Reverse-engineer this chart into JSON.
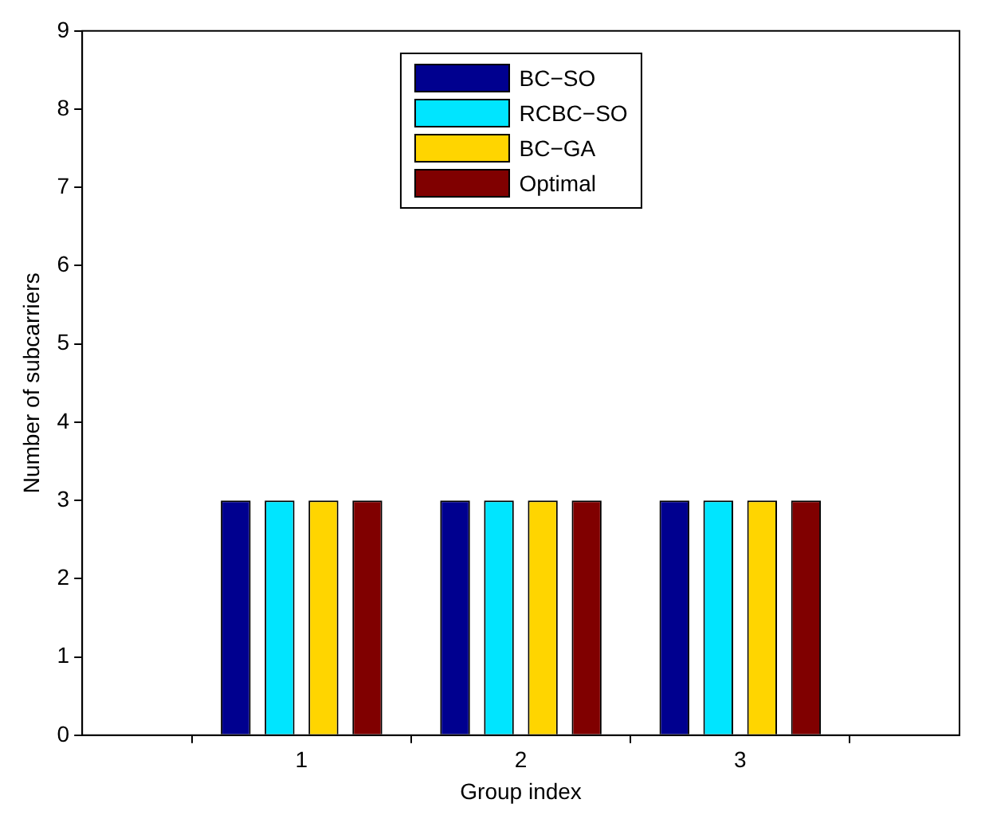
{
  "chart_data": {
    "type": "bar",
    "xlabel": "Group index",
    "ylabel": "Number of subcarriers",
    "x": [
      1,
      2,
      3
    ],
    "xlim": [
      0,
      4
    ],
    "xticks": [
      1,
      2,
      3
    ],
    "ylim": [
      0,
      9
    ],
    "yticks": [
      0,
      1,
      2,
      3,
      4,
      5,
      6,
      7,
      8,
      9
    ],
    "series": [
      {
        "name": "BC−SO",
        "color": "#00008f",
        "values": [
          3,
          3,
          3
        ]
      },
      {
        "name": "RCBC−SO",
        "color": "#00e5ff",
        "values": [
          3,
          3,
          3
        ]
      },
      {
        "name": "BC−GA",
        "color": "#ffd500",
        "values": [
          3,
          3,
          3
        ]
      },
      {
        "name": "Optimal",
        "color": "#800000",
        "values": [
          3,
          3,
          3
        ]
      }
    ],
    "grid": false,
    "legend": "top"
  }
}
